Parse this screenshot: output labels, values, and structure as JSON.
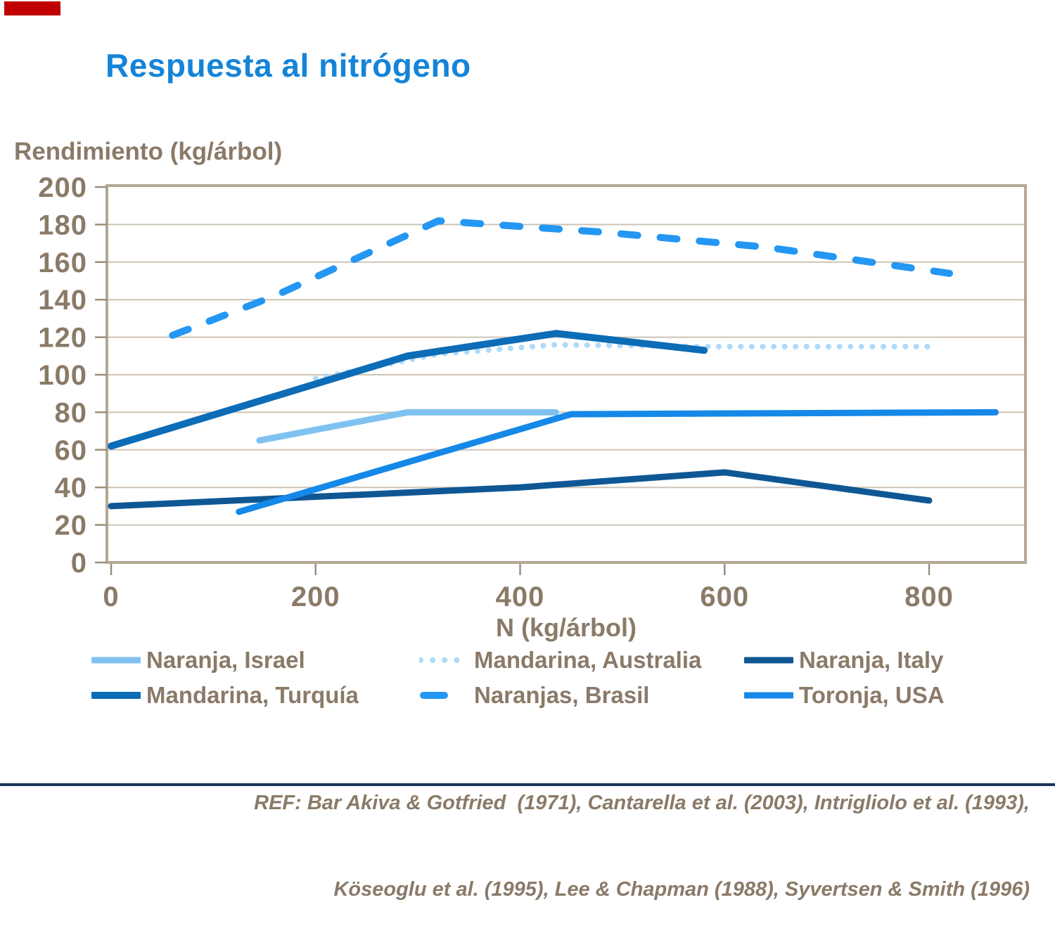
{
  "slide": {
    "title": "Respuesta al nitrógeno",
    "footer_line1": "REF: Bar Akiva & Gotfried  (1971), Cantarella et al. (2003), Intrigliolo et al. (1993),",
    "footer_line2": "Köseoglu et al. (1995), Lee & Chapman (1988), Syvertsen & Smith (1996)"
  },
  "colors": {
    "title_blue": "#1584d8",
    "text_taupe": "#8a7a68",
    "plot_border": "#b5a795",
    "gridline": "#cec4b6",
    "tick": "#9c8e7d",
    "corner_accent_red": "#c00000",
    "bottom_bar_navy": "#17365d"
  },
  "chart_data": {
    "type": "line",
    "title": "Respuesta al nitrógeno",
    "xlabel": "N (kg/árbol)",
    "ylabel": "Rendimiento (kg/árbol)",
    "xlim": [
      0,
      895
    ],
    "ylim": [
      0,
      200
    ],
    "x_ticks": [
      0,
      200,
      400,
      600,
      800
    ],
    "y_ticks": [
      0,
      20,
      40,
      60,
      80,
      100,
      120,
      140,
      160,
      180,
      200
    ],
    "grid": "horizontal",
    "legend_position": "bottom",
    "series": [
      {
        "name": "Naranja, Israel",
        "style": "solid",
        "color": "#7fc2f2",
        "width": 9,
        "z": 2,
        "points": [
          [
            145,
            65
          ],
          [
            290,
            80
          ],
          [
            435,
            80
          ]
        ]
      },
      {
        "name": "Mandarina, Australia",
        "style": "dotted",
        "color": "#aedaf8",
        "width": 8,
        "z": 1,
        "points": [
          [
            200,
            98
          ],
          [
            320,
            111
          ],
          [
            435,
            116
          ],
          [
            580,
            115
          ],
          [
            800,
            115
          ]
        ]
      },
      {
        "name": "Naranja, Italy",
        "style": "solid",
        "color": "#0f5794",
        "width": 9,
        "z": 3,
        "points": [
          [
            0,
            30
          ],
          [
            200,
            35
          ],
          [
            400,
            40
          ],
          [
            600,
            48
          ],
          [
            800,
            33
          ]
        ]
      },
      {
        "name": "Mandarina, Turquía",
        "style": "solid",
        "color": "#0c6cb6",
        "width": 10,
        "z": 4,
        "points": [
          [
            0,
            62
          ],
          [
            290,
            110
          ],
          [
            435,
            122
          ],
          [
            580,
            113
          ]
        ]
      },
      {
        "name": "Naranjas, Brasil",
        "style": "dashed",
        "color": "#2397f3",
        "width": 10,
        "z": 5,
        "points": [
          [
            60,
            121
          ],
          [
            160,
            142
          ],
          [
            320,
            182
          ],
          [
            480,
            176
          ],
          [
            640,
            168
          ],
          [
            820,
            154
          ]
        ]
      },
      {
        "name": "Toronja, USA",
        "style": "solid",
        "color": "#1588e8",
        "width": 9,
        "z": 6,
        "points": [
          [
            125,
            27
          ],
          [
            450,
            79
          ],
          [
            865,
            80
          ]
        ]
      }
    ]
  }
}
